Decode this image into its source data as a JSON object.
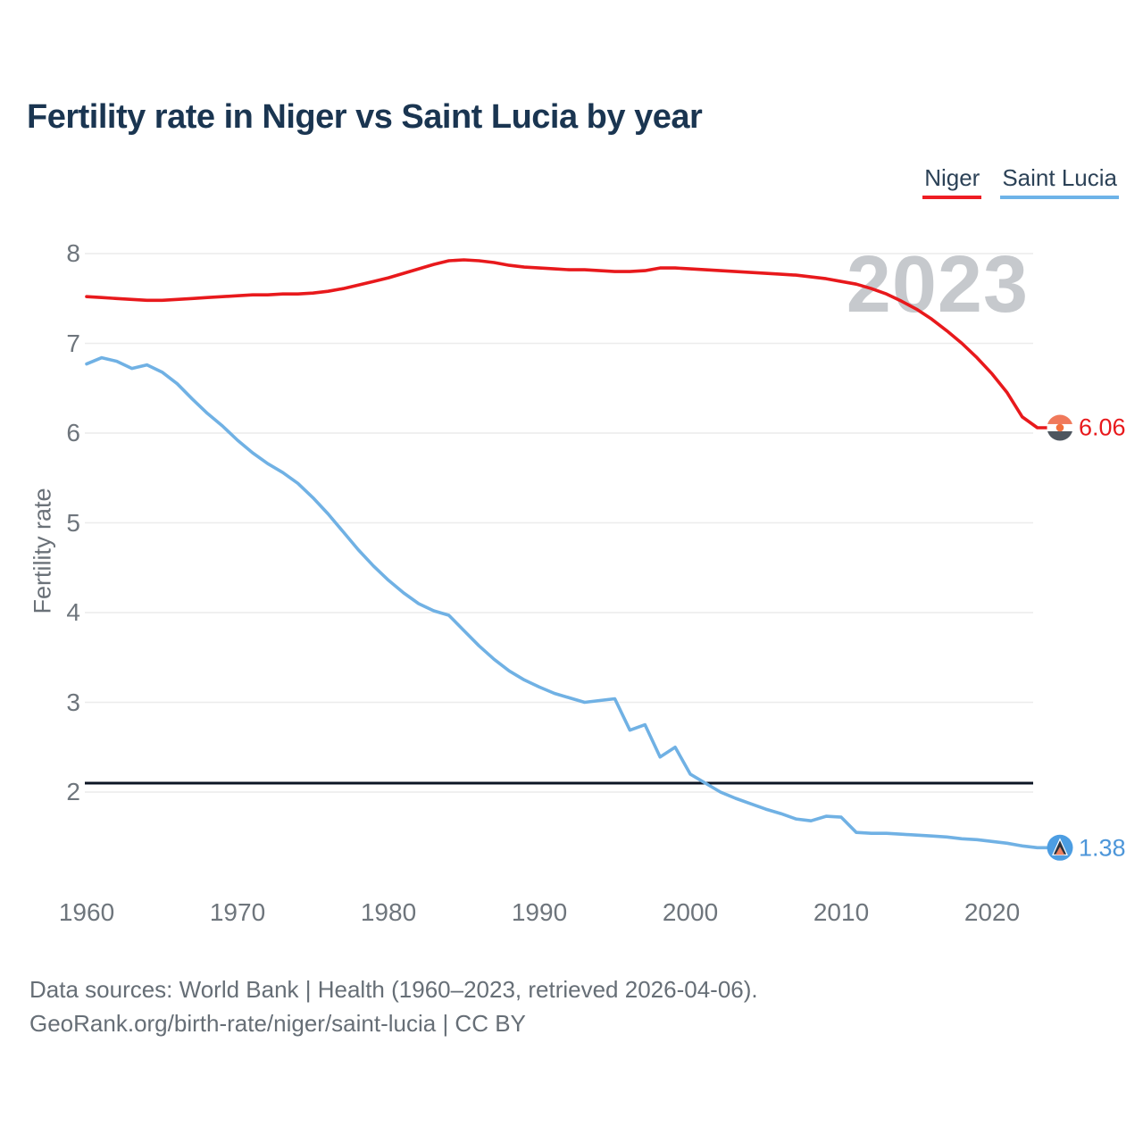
{
  "header": {
    "title": "Fertility rate in Niger vs Saint Lucia by year"
  },
  "legend": {
    "items": [
      {
        "label": "Niger",
        "color": "#ee1d23"
      },
      {
        "label": "Saint Lucia",
        "color": "#6db3e8"
      }
    ]
  },
  "watermark": "2023",
  "chart_data": {
    "type": "line",
    "title": "Fertility rate in Niger vs Saint Lucia by year",
    "xlabel": "",
    "ylabel": "Fertility rate",
    "grid": true,
    "legend_position": "top-right",
    "ylim": [
      1.1,
      8.3
    ],
    "yticks": [
      8,
      7,
      6,
      5,
      4,
      3,
      2
    ],
    "xticks": [
      1960,
      1970,
      1980,
      1990,
      2000,
      2010,
      2020
    ],
    "reference_line": {
      "value": 2.1,
      "color": "#0c1524"
    },
    "years": [
      1960,
      1961,
      1962,
      1963,
      1964,
      1965,
      1966,
      1967,
      1968,
      1969,
      1970,
      1971,
      1972,
      1973,
      1974,
      1975,
      1976,
      1977,
      1978,
      1979,
      1980,
      1981,
      1982,
      1983,
      1984,
      1985,
      1986,
      1987,
      1988,
      1989,
      1990,
      1991,
      1992,
      1993,
      1994,
      1995,
      1996,
      1997,
      1998,
      1999,
      2000,
      2001,
      2002,
      2003,
      2004,
      2005,
      2006,
      2007,
      2008,
      2009,
      2010,
      2011,
      2012,
      2013,
      2014,
      2015,
      2016,
      2017,
      2018,
      2019,
      2020,
      2021,
      2022,
      2023
    ],
    "series": [
      {
        "name": "Niger",
        "color": "#e8191c",
        "values": [
          7.52,
          7.51,
          7.5,
          7.49,
          7.48,
          7.48,
          7.49,
          7.5,
          7.51,
          7.52,
          7.53,
          7.54,
          7.54,
          7.55,
          7.55,
          7.56,
          7.58,
          7.61,
          7.65,
          7.69,
          7.73,
          7.78,
          7.83,
          7.88,
          7.92,
          7.93,
          7.92,
          7.9,
          7.87,
          7.85,
          7.84,
          7.83,
          7.82,
          7.82,
          7.81,
          7.8,
          7.8,
          7.81,
          7.84,
          7.84,
          7.83,
          7.82,
          7.81,
          7.8,
          7.79,
          7.78,
          7.77,
          7.76,
          7.74,
          7.72,
          7.69,
          7.66,
          7.61,
          7.55,
          7.47,
          7.38,
          7.27,
          7.14,
          7.0,
          6.84,
          6.66,
          6.45,
          6.18,
          6.06
        ]
      },
      {
        "name": "Saint Lucia",
        "color": "#70b1e4",
        "values": [
          6.77,
          6.84,
          6.8,
          6.72,
          6.76,
          6.68,
          6.55,
          6.38,
          6.22,
          6.08,
          5.92,
          5.78,
          5.66,
          5.56,
          5.44,
          5.28,
          5.1,
          4.9,
          4.7,
          4.52,
          4.36,
          4.22,
          4.1,
          4.02,
          3.97,
          3.8,
          3.63,
          3.48,
          3.35,
          3.25,
          3.17,
          3.1,
          3.05,
          3.0,
          3.02,
          3.04,
          2.69,
          2.75,
          2.39,
          2.5,
          2.2,
          2.1,
          2.0,
          1.93,
          1.87,
          1.81,
          1.76,
          1.7,
          1.68,
          1.73,
          1.72,
          1.55,
          1.54,
          1.54,
          1.53,
          1.52,
          1.51,
          1.5,
          1.48,
          1.47,
          1.45,
          1.43,
          1.4,
          1.38
        ]
      }
    ],
    "end_labels": [
      {
        "series": "Niger",
        "value": "6.06"
      },
      {
        "series": "Saint Lucia",
        "value": "1.38"
      }
    ]
  },
  "icons": {
    "niger_flag": {
      "top": "#f0795b",
      "middle": "#ffffff",
      "dot": "#f2703d",
      "bottom": "#4e565f"
    },
    "saint_lucia_flag": {
      "circle": "#4c9de2",
      "outline": "#ffffff",
      "dark": "#2a3440",
      "light": "#ee8060"
    }
  },
  "footer": {
    "line1": "Data sources: World Bank | Health (1960–2023, retrieved 2026-04-06).",
    "line2": "GeoRank.org/birth-rate/niger/saint-lucia | CC BY"
  }
}
